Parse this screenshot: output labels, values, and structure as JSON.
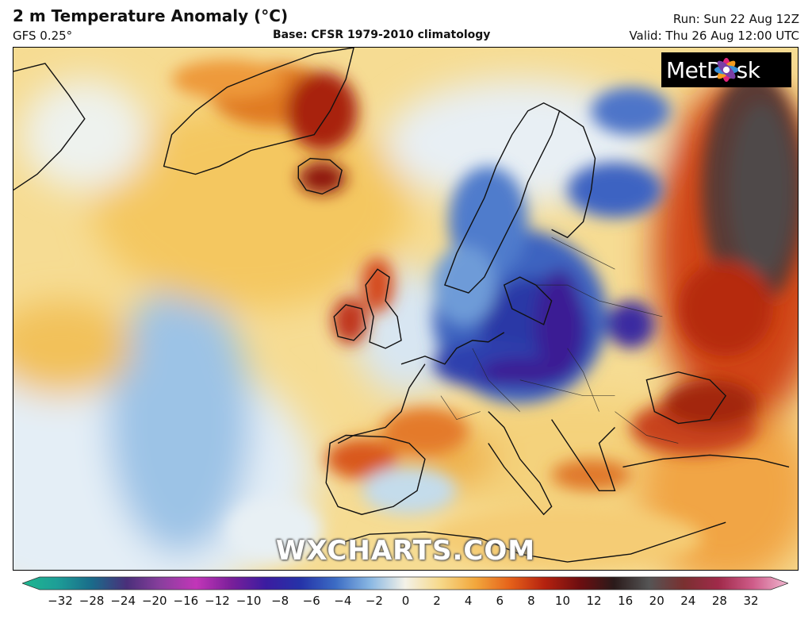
{
  "header": {
    "title": "2 m Temperature Anomaly (°C)",
    "model": "GFS 0.25°",
    "base": "Base: CFSR 1979-2010 climatology",
    "run": "Run: Sun 22 Aug 12Z",
    "valid": "Valid: Thu 26 Aug 12:00 UTC"
  },
  "map": {
    "region": "North Atlantic and Europe",
    "logo_text": "MetDesk",
    "watermark": "WXCHARTS.COM",
    "icons": [
      "metdesk-flower-logo-icon"
    ]
  },
  "colorbar": {
    "ticks": [
      "−32",
      "−28",
      "−24",
      "−20",
      "−16",
      "−12",
      "−10",
      "−8",
      "−6",
      "−4",
      "−2",
      "0",
      "2",
      "4",
      "6",
      "8",
      "10",
      "12",
      "16",
      "20",
      "24",
      "28",
      "32"
    ],
    "colors": [
      "#1fb88f",
      "#1d9e97",
      "#1a6b8a",
      "#4a2f7a",
      "#8b3f9e",
      "#c236b8",
      "#7a1f9a",
      "#3b1ca0",
      "#2533a8",
      "#3c6cc4",
      "#8ab8e3",
      "#f4f2e8",
      "#f6d98a",
      "#f2a83d",
      "#e6621a",
      "#b5220f",
      "#6e0e10",
      "#2a1a1a",
      "#555555",
      "#7a3030",
      "#a02a4a",
      "#cf5d8a",
      "#f0b7d0"
    ]
  }
}
